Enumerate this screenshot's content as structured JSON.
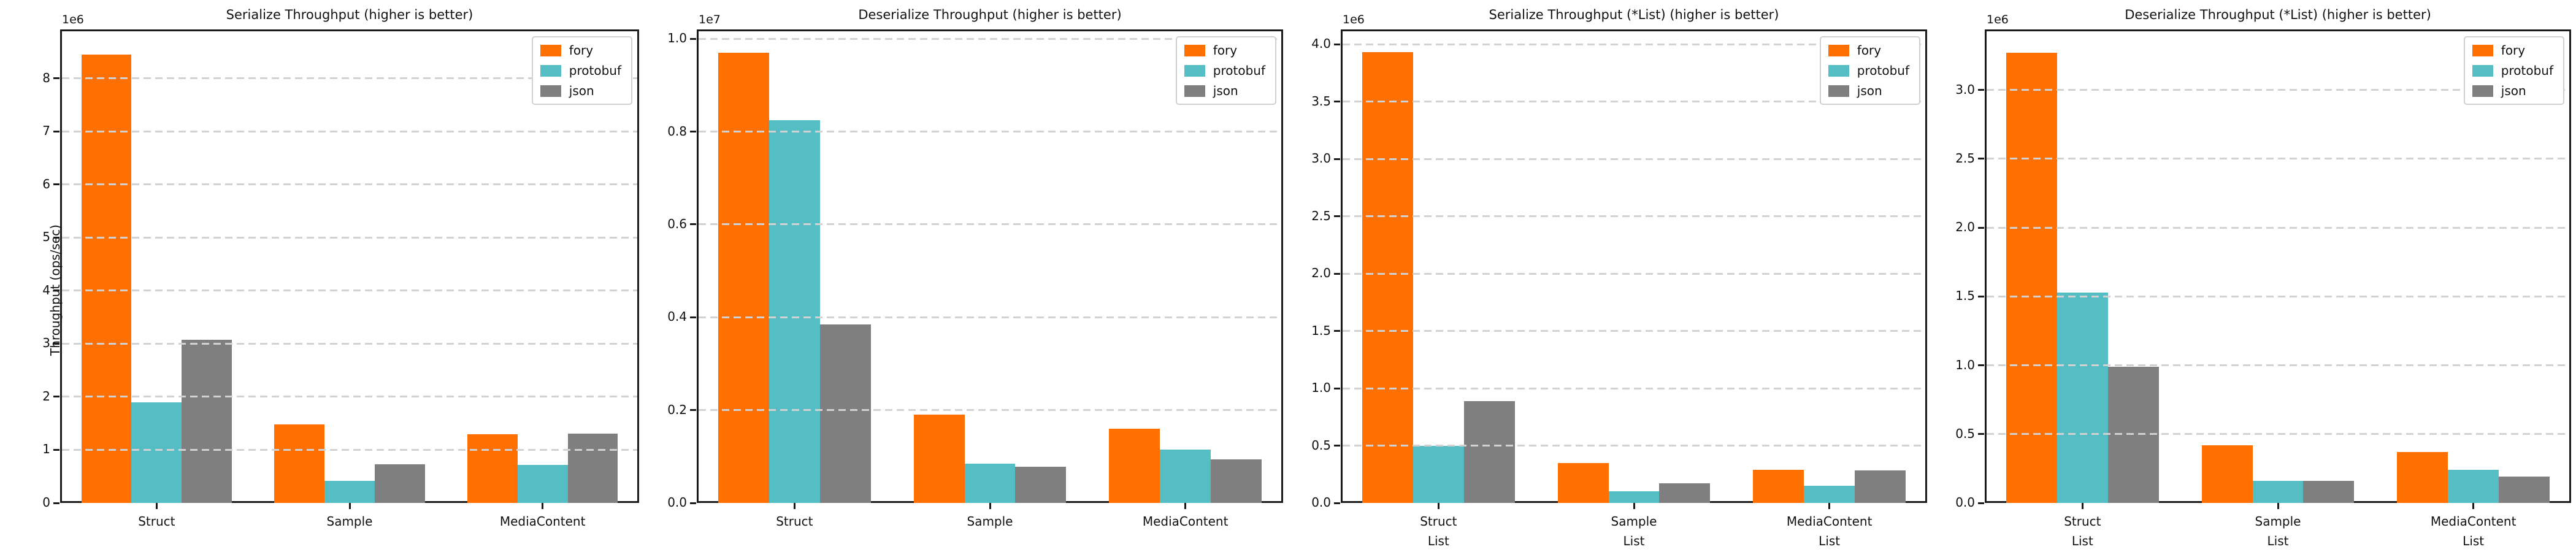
{
  "figure": {
    "background": "#ffffff",
    "grid_color": "#d2d2d2",
    "spine_color": "#1a1a1a",
    "legend_labels": [
      "fory",
      "protobuf",
      "json"
    ],
    "series_colors": {
      "fory": "#FF7000",
      "protobuf": "#54BEC4",
      "json": "#7F7F7F"
    }
  },
  "chart_data": [
    {
      "type": "bar",
      "title": "Serialize Throughput (higher is better)",
      "ylabel": "Throughput (ops/sec)",
      "offset_label": "1e6",
      "categories": [
        [
          "Struct"
        ],
        [
          "Sample"
        ],
        [
          "MediaContent"
        ]
      ],
      "series": [
        {
          "name": "fory",
          "color": "#FF7000",
          "values": [
            8450000,
            1480000,
            1290000
          ]
        },
        {
          "name": "protobuf",
          "color": "#54BEC4",
          "values": [
            1900000,
            420000,
            720000
          ]
        },
        {
          "name": "json",
          "color": "#7F7F7F",
          "values": [
            3070000,
            730000,
            1300000
          ]
        }
      ],
      "ylim": [
        0,
        8920000
      ],
      "ytick_values": [
        0,
        1000000,
        2000000,
        3000000,
        4000000,
        5000000,
        6000000,
        7000000,
        8000000
      ],
      "ytick_labels": [
        "0",
        "1",
        "2",
        "3",
        "4",
        "5",
        "6",
        "7",
        "8"
      ],
      "grid": true,
      "legend_position": "upper-right"
    },
    {
      "type": "bar",
      "title": "Deserialize Throughput (higher is better)",
      "ylabel": "",
      "offset_label": "1e7",
      "categories": [
        [
          "Struct"
        ],
        [
          "Sample"
        ],
        [
          "MediaContent"
        ]
      ],
      "series": [
        {
          "name": "fory",
          "color": "#FF7000",
          "values": [
            9700000,
            1900000,
            1600000
          ]
        },
        {
          "name": "protobuf",
          "color": "#54BEC4",
          "values": [
            8250000,
            850000,
            1150000
          ]
        },
        {
          "name": "json",
          "color": "#7F7F7F",
          "values": [
            3850000,
            780000,
            940000
          ]
        }
      ],
      "ylim": [
        0,
        10200000
      ],
      "ytick_values": [
        0,
        2000000,
        4000000,
        6000000,
        8000000,
        10000000
      ],
      "ytick_labels": [
        "0.0",
        "0.2",
        "0.4",
        "0.6",
        "0.8",
        "1.0"
      ],
      "grid": true,
      "legend_position": "upper-right"
    },
    {
      "type": "bar",
      "title": "Serialize Throughput (*List) (higher is better)",
      "ylabel": "",
      "offset_label": "1e6",
      "categories": [
        [
          "Struct",
          "List"
        ],
        [
          "Sample",
          "List"
        ],
        [
          "MediaContent",
          "List"
        ]
      ],
      "series": [
        {
          "name": "fory",
          "color": "#FF7000",
          "values": [
            3930000,
            350000,
            290000
          ]
        },
        {
          "name": "protobuf",
          "color": "#54BEC4",
          "values": [
            500000,
            100000,
            150000
          ]
        },
        {
          "name": "json",
          "color": "#7F7F7F",
          "values": [
            890000,
            170000,
            285000
          ]
        }
      ],
      "ylim": [
        0,
        4130000
      ],
      "ytick_values": [
        0,
        500000,
        1000000,
        1500000,
        2000000,
        2500000,
        3000000,
        3500000,
        4000000
      ],
      "ytick_labels": [
        "0.0",
        "0.5",
        "1.0",
        "1.5",
        "2.0",
        "2.5",
        "3.0",
        "3.5",
        "4.0"
      ],
      "grid": true,
      "legend_position": "upper-right"
    },
    {
      "type": "bar",
      "title": "Deserialize Throughput (*List) (higher is better)",
      "ylabel": "",
      "offset_label": "1e6",
      "categories": [
        [
          "Struct",
          "List"
        ],
        [
          "Sample",
          "List"
        ],
        [
          "MediaContent",
          "List"
        ]
      ],
      "series": [
        {
          "name": "fory",
          "color": "#FF7000",
          "values": [
            3270000,
            420000,
            370000
          ]
        },
        {
          "name": "protobuf",
          "color": "#54BEC4",
          "values": [
            1530000,
            160000,
            240000
          ]
        },
        {
          "name": "json",
          "color": "#7F7F7F",
          "values": [
            990000,
            160000,
            190000
          ]
        }
      ],
      "ylim": [
        0,
        3440000
      ],
      "ytick_values": [
        0,
        500000,
        1000000,
        1500000,
        2000000,
        2500000,
        3000000
      ],
      "ytick_labels": [
        "0.0",
        "0.5",
        "1.0",
        "1.5",
        "2.0",
        "2.5",
        "3.0"
      ],
      "grid": true,
      "legend_position": "upper-right"
    }
  ]
}
